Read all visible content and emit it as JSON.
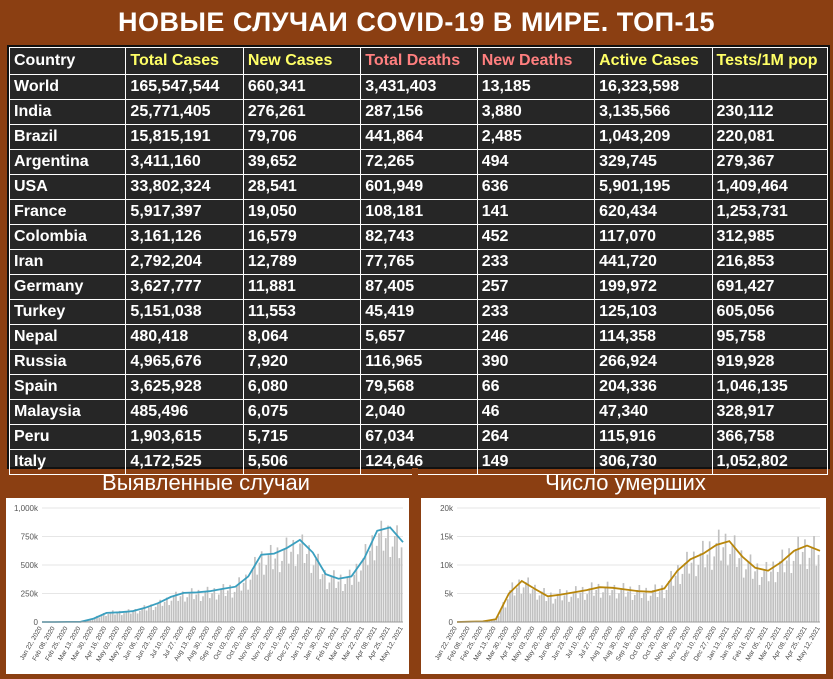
{
  "title": "НОВЫЕ СЛУЧАИ COVID-19 В МИРЕ. ТОП-15",
  "table": {
    "headers": [
      {
        "label": "Country",
        "color": "#ffffff"
      },
      {
        "label": "Total Cases",
        "color": "#ffff66"
      },
      {
        "label": "New Cases",
        "color": "#ffff66"
      },
      {
        "label": "Total Deaths",
        "color": "#ff7f7f"
      },
      {
        "label": "New Deaths",
        "color": "#ff7f7f"
      },
      {
        "label": "Active Cases",
        "color": "#ffff66"
      },
      {
        "label": "Tests/1M pop",
        "color": "#ffff66"
      }
    ],
    "rows": [
      [
        "World",
        "165,547,544",
        "660,341",
        "3,431,403",
        "13,185",
        "16,323,598",
        ""
      ],
      [
        "India",
        "25,771,405",
        "276,261",
        "287,156",
        "3,880",
        "3,135,566",
        "230,112"
      ],
      [
        "Brazil",
        "15,815,191",
        "79,706",
        "441,864",
        "2,485",
        "1,043,209",
        "220,081"
      ],
      [
        "Argentina",
        "3,411,160",
        "39,652",
        "72,265",
        "494",
        "329,745",
        "279,367"
      ],
      [
        "USA",
        "33,802,324",
        "28,541",
        "601,949",
        "636",
        "5,901,195",
        "1,409,464"
      ],
      [
        "France",
        "5,917,397",
        "19,050",
        "108,181",
        "141",
        "620,434",
        "1,253,731"
      ],
      [
        "Colombia",
        "3,161,126",
        "16,579",
        "82,743",
        "452",
        "117,070",
        "312,985"
      ],
      [
        "Iran",
        "2,792,204",
        "12,789",
        "77,765",
        "233",
        "441,720",
        "216,853"
      ],
      [
        "Germany",
        "3,627,777",
        "11,881",
        "87,405",
        "257",
        "199,972",
        "691,427"
      ],
      [
        "Turkey",
        "5,151,038",
        "11,553",
        "45,419",
        "233",
        "125,103",
        "605,056"
      ],
      [
        "Nepal",
        "480,418",
        "8,064",
        "5,657",
        "246",
        "114,358",
        "95,758"
      ],
      [
        "Russia",
        "4,965,676",
        "7,920",
        "116,965",
        "390",
        "266,924",
        "919,928"
      ],
      [
        "Spain",
        "3,625,928",
        "6,080",
        "79,568",
        "66",
        "204,336",
        "1,046,135"
      ],
      [
        "Malaysia",
        "485,496",
        "6,075",
        "2,040",
        "46",
        "47,340",
        "328,917"
      ],
      [
        "Peru",
        "1,903,615",
        "5,715",
        "67,034",
        "264",
        "115,916",
        "366,758"
      ],
      [
        "Italy",
        "4,172,525",
        "5,506",
        "124,646",
        "149",
        "306,730",
        "1,052,802"
      ]
    ]
  },
  "panels": {
    "left_title": "Выявленные случаи",
    "right_title": "Число умерших"
  },
  "chart_data": [
    {
      "type": "bar",
      "title": "Выявленные случаи",
      "bar_color": "#c0c0c0",
      "line_color": "#3a9fbf",
      "ylim": [
        0,
        1000000
      ],
      "y_ticks": [
        "0",
        "250k",
        "500k",
        "750k",
        "1,000k"
      ],
      "y_tick_values": [
        0,
        250000,
        500000,
        750000,
        1000000
      ],
      "x_ticks": [
        "Jan 22, 2020",
        "Feb 08, 2020",
        "Feb 25, 2020",
        "Mar 13, 2020",
        "Mar 30, 2020",
        "Apr 16, 2020",
        "May 03, 2020",
        "May 20, 2020",
        "Jun 06, 2020",
        "Jun 23, 2020",
        "Jul 10, 2020",
        "Jul 27, 2020",
        "Aug 13, 2020",
        "Aug 30, 2020",
        "Sep 16, 2020",
        "Oct 03, 2020",
        "Oct 20, 2020",
        "Nov 06, 2020",
        "Nov 23, 2020",
        "Dec 10, 2020",
        "Dec 27, 2020",
        "Jan 13, 2021",
        "Jan 30, 2021",
        "Feb 16, 2021",
        "Mar 05, 2021",
        "Mar 22, 2021",
        "Apr 08, 2021",
        "Apr 25, 2021",
        "May 12, 2021"
      ],
      "average_series": [
        0,
        0,
        1000,
        2000,
        30000,
        80000,
        85000,
        95000,
        125000,
        165000,
        220000,
        255000,
        260000,
        270000,
        290000,
        310000,
        400000,
        590000,
        600000,
        650000,
        720000,
        610000,
        420000,
        380000,
        400000,
        560000,
        800000,
        830000,
        700000
      ],
      "bar_peak_series": [
        0,
        0,
        2000,
        3000,
        40000,
        100000,
        105000,
        115000,
        150000,
        185000,
        250000,
        290000,
        300000,
        310000,
        330000,
        360000,
        460000,
        660000,
        680000,
        740000,
        790000,
        700000,
        490000,
        440000,
        460000,
        640000,
        880000,
        900000,
        820000
      ]
    },
    {
      "type": "bar",
      "title": "Число умерших",
      "bar_color": "#c0c0c0",
      "line_color": "#b8860b",
      "ylim": [
        0,
        20000
      ],
      "y_ticks": [
        "0",
        "5k",
        "10k",
        "15k",
        "20k"
      ],
      "y_tick_values": [
        0,
        5000,
        10000,
        15000,
        20000
      ],
      "x_ticks": [
        "Jan 22, 2020",
        "Feb 08, 2020",
        "Feb 25, 2020",
        "Mar 13, 2020",
        "Mar 30, 2020",
        "Apr 16, 2020",
        "May 03, 2020",
        "May 20, 2020",
        "Jun 06, 2020",
        "Jun 23, 2020",
        "Jul 10, 2020",
        "Jul 27, 2020",
        "Aug 13, 2020",
        "Aug 30, 2020",
        "Sep 16, 2020",
        "Oct 03, 2020",
        "Oct 20, 2020",
        "Nov 06, 2020",
        "Nov 23, 2020",
        "Dec 10, 2020",
        "Dec 27, 2020",
        "Jan 13, 2021",
        "Jan 30, 2021",
        "Feb 16, 2021",
        "Mar 05, 2021",
        "Mar 22, 2021",
        "Apr 08, 2021",
        "Apr 25, 2021",
        "May 12, 2021"
      ],
      "average_series": [
        0,
        50,
        100,
        500,
        5000,
        7200,
        5800,
        4500,
        4800,
        5200,
        5600,
        6100,
        6000,
        5700,
        5400,
        5300,
        5900,
        9000,
        11000,
        12000,
        13500,
        14200,
        11500,
        9500,
        9000,
        10500,
        12500,
        13400,
        12500
      ],
      "bar_peak_series": [
        0,
        80,
        150,
        800,
        6500,
        8500,
        7000,
        5500,
        5800,
        6200,
        6800,
        7200,
        7000,
        6800,
        6500,
        6400,
        7000,
        10500,
        12800,
        14200,
        16000,
        16800,
        13500,
        11200,
        10500,
        12300,
        14500,
        15600,
        14800
      ]
    }
  ]
}
